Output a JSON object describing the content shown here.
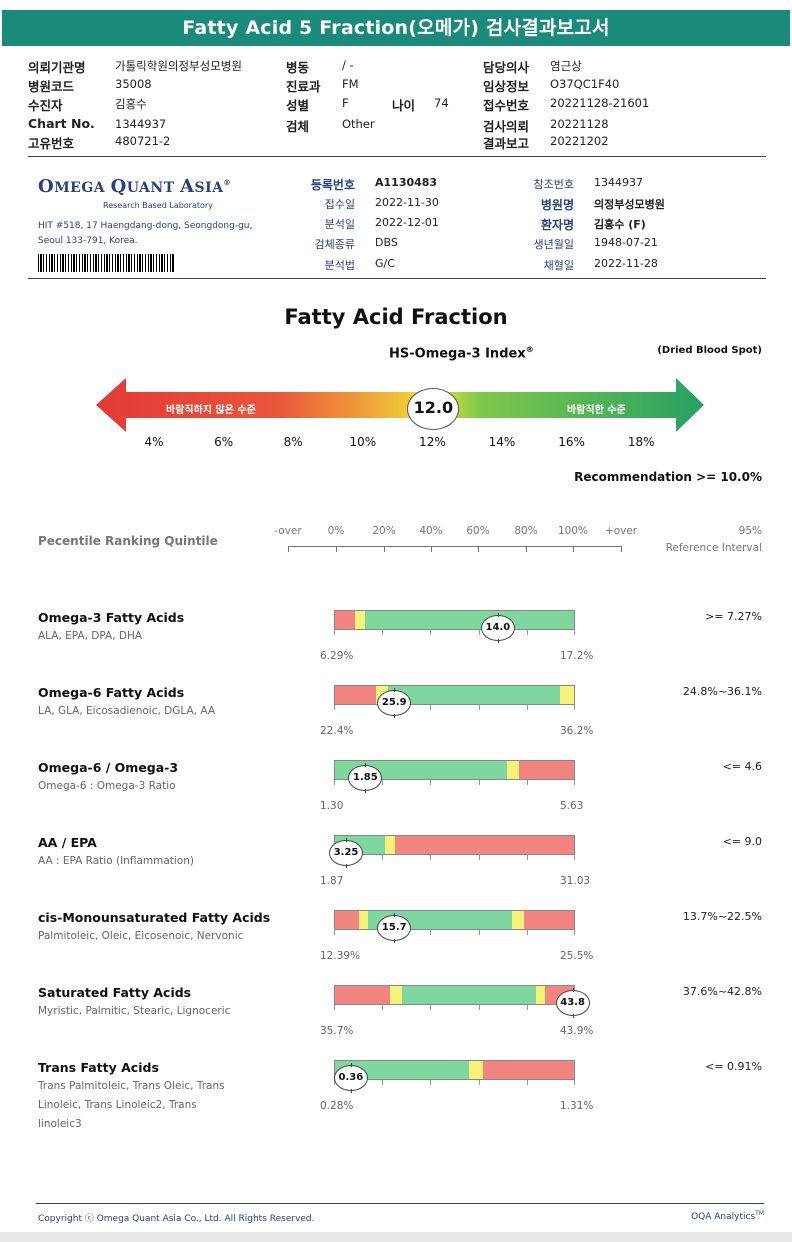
{
  "report_title": "Fatty Acid 5 Fraction(오메가) 검사결과보고서",
  "header": {
    "col1": [
      {
        "label": "의뢰기관명",
        "value": "가톨릭학원의정부성모병원"
      },
      {
        "label": "병원코드",
        "value": "35008"
      },
      {
        "label": "수진자",
        "value": "김홍수"
      },
      {
        "label": "Chart No.",
        "value": "1344937"
      },
      {
        "label": "고유번호",
        "value": "480721-2"
      }
    ],
    "col2": [
      {
        "label": "병동",
        "value": "/ -"
      },
      {
        "label": "진료과",
        "value": "FM"
      },
      {
        "label": "성별",
        "value": "F"
      },
      {
        "label": "검체",
        "value": "Other"
      }
    ],
    "age": {
      "label": "나이",
      "value": "74"
    },
    "col3": [
      {
        "label": "담당의사",
        "value": "염근상"
      },
      {
        "label": "임상정보",
        "value": "O37QC1F40"
      },
      {
        "label": "접수번호",
        "value": "20221128-21601"
      },
      {
        "label": "검사의뢰",
        "value": "20221128"
      },
      {
        "label": "결과보고",
        "value": "20221202"
      }
    ]
  },
  "lab": {
    "name_big1": "O",
    "name_small1": "MEGA ",
    "name_big2": "Q",
    "name_small2": "UANT ",
    "name_big3": "A",
    "name_small3": "SIA",
    "reg_mark": "®",
    "subtitle": "Research Based Laboratory",
    "address1": "HIT #518, 17 Haengdang-dong, Seongdong-gu,",
    "address2": "Seoul 133-791, Korea."
  },
  "registration": {
    "left": [
      {
        "label": "등록번호",
        "value": "A1130483",
        "bold": true
      },
      {
        "label": "접수일",
        "value": "2022-11-30"
      },
      {
        "label": "분석일",
        "value": "2022-12-01"
      },
      {
        "label": "검체종류",
        "value": "DBS"
      },
      {
        "label": "분석법",
        "value": "G/C"
      }
    ],
    "right": [
      {
        "label": "참조번호",
        "value": "1344937"
      },
      {
        "label": "병원명",
        "value": "의정부성모병원",
        "bold": true
      },
      {
        "label": "환자명",
        "value": "김홍수 (F)",
        "bold": true
      },
      {
        "label": "생년월일",
        "value": "1948-07-21"
      },
      {
        "label": "채혈일",
        "value": "2022-11-28"
      }
    ]
  },
  "index_section": {
    "title": "Fatty Acid Fraction",
    "index_label": "HS-Omega-3 Index",
    "index_reg": "®",
    "specimen_note": "(Dried Blood Spot)",
    "bad_label": "바람직하지 않은 수준",
    "good_label": "바람직한 수준",
    "scale": [
      "4%",
      "6%",
      "8%",
      "10%",
      "12%",
      "14%",
      "16%",
      "18%"
    ],
    "value": 12.0,
    "value_text": "12.0",
    "recommendation": "Recommendation  >= 10.0%"
  },
  "percentile": {
    "title": "Pecentile Ranking Quintile",
    "labels": [
      "-over",
      "0%",
      "20%",
      "40%",
      "60%",
      "80%",
      "100%",
      "+over"
    ],
    "ref_line1": "95%",
    "ref_line2": "Reference Interval"
  },
  "colors": {
    "red": "#f28582",
    "yellow": "#f7f279",
    "green": "#7fd69f",
    "accent": "#1c8a7a",
    "lab_blue": "#27427a"
  },
  "fatty_acids": [
    {
      "name": "Omega-3 Fatty Acids",
      "sub": "ALA, EPA, DPA, DHA",
      "min": "6.29%",
      "max": "17.2%",
      "value_text": "14.0",
      "value_pos": 0.68,
      "reference": ">= 7.27%",
      "segments": [
        {
          "c": "red",
          "w": 0.085
        },
        {
          "c": "yellow",
          "w": 0.04
        },
        {
          "c": "green",
          "w": 0.875
        }
      ]
    },
    {
      "name": "Omega-6 Fatty Acids",
      "sub": "LA, GLA, Eicosadienoic, DGLA, AA",
      "min": "22.4%",
      "max": "36.2%",
      "value_text": "25.9",
      "value_pos": 0.25,
      "reference": "24.8%~36.1%",
      "segments": [
        {
          "c": "red",
          "w": 0.17
        },
        {
          "c": "yellow",
          "w": 0.05
        },
        {
          "c": "green",
          "w": 0.72
        },
        {
          "c": "yellow",
          "w": 0.06
        }
      ]
    },
    {
      "name": "Omega-6 / Omega-3",
      "sub": "Omega-6 : Omega-3 Ratio",
      "min": "1.30",
      "max": "5.63",
      "value_text": "1.85",
      "value_pos": 0.13,
      "reference": "<= 4.6",
      "segments": [
        {
          "c": "green",
          "w": 0.72
        },
        {
          "c": "yellow",
          "w": 0.05
        },
        {
          "c": "red",
          "w": 0.23
        }
      ]
    },
    {
      "name": "AA / EPA",
      "sub": "AA : EPA Ratio (Inflammation)",
      "min": "1.87",
      "max": "31.03",
      "value_text": "3.25",
      "value_pos": 0.05,
      "reference": "<= 9.0",
      "segments": [
        {
          "c": "green",
          "w": 0.21
        },
        {
          "c": "yellow",
          "w": 0.04
        },
        {
          "c": "red",
          "w": 0.75
        }
      ]
    },
    {
      "name": "cis-Monounsaturated Fatty Acids",
      "sub": "Palmitoleic, Oleic, Eicosenoic, Nervonic",
      "min": "12.39%",
      "max": "25.5%",
      "value_text": "15.7",
      "value_pos": 0.25,
      "reference": "13.7%~22.5%",
      "segments": [
        {
          "c": "red",
          "w": 0.1
        },
        {
          "c": "yellow",
          "w": 0.04
        },
        {
          "c": "green",
          "w": 0.6
        },
        {
          "c": "yellow",
          "w": 0.05
        },
        {
          "c": "red",
          "w": 0.21
        }
      ]
    },
    {
      "name": "Saturated Fatty Acids",
      "sub": "Myristic, Palmitic, Stearic, Lignoceric",
      "min": "35.7%",
      "max": "43.9%",
      "value_text": "43.8",
      "value_pos": 0.99,
      "reference": "37.6%~42.8%",
      "segments": [
        {
          "c": "red",
          "w": 0.23
        },
        {
          "c": "yellow",
          "w": 0.05
        },
        {
          "c": "green",
          "w": 0.56
        },
        {
          "c": "yellow",
          "w": 0.04
        },
        {
          "c": "red",
          "w": 0.12
        }
      ]
    },
    {
      "name": "Trans Fatty Acids",
      "sub": "Trans Palmitoleic, Trans Oleic, Trans Linoleic, Trans Linoleic2, Trans linoleic3",
      "min": "0.28%",
      "max": "1.31%",
      "value_text": "0.36",
      "value_pos": 0.07,
      "reference": "<= 0.91%",
      "segments": [
        {
          "c": "green",
          "w": 0.56
        },
        {
          "c": "yellow",
          "w": 0.06
        },
        {
          "c": "red",
          "w": 0.38
        }
      ]
    }
  ],
  "footer": {
    "copyright": "Copyright ⓒ Omega Quant Asia Co., Ltd.  All Rights Reserved.",
    "brand": "OQA Analytics",
    "brand_tm": "TM"
  }
}
